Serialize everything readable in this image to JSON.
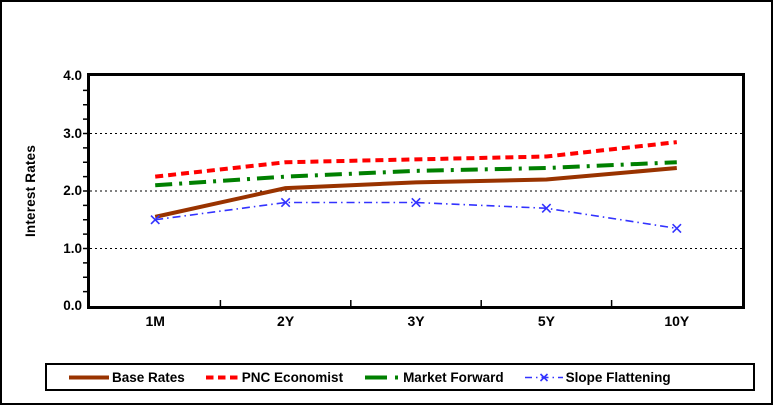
{
  "window": {
    "background": "#FFFFFF",
    "border_color": "#000000"
  },
  "chart_data": {
    "type": "line",
    "title": "",
    "xlabel": "",
    "ylabel": "Interest Rates",
    "categories": [
      "1M",
      "2Y",
      "3Y",
      "5Y",
      "10Y"
    ],
    "ylim": [
      0.0,
      4.0
    ],
    "ytick_values": [
      4.0,
      3.0,
      2.0,
      1.0,
      0.0
    ],
    "ytick_labels": [
      "4.0",
      "3.0",
      "2.0",
      "1.0",
      "0.0"
    ],
    "minor_tick_step": 0.25,
    "grid_values": [
      1.0,
      2.0,
      3.0
    ],
    "grid_style": "dotted",
    "legend_position": "bottom",
    "axis_color": "#000000",
    "series": [
      {
        "name": "Base Rates",
        "color": "#993300",
        "style": "solid",
        "width": 4,
        "marker": "none",
        "values": [
          1.55,
          2.05,
          2.15,
          2.2,
          2.4
        ]
      },
      {
        "name": "PNC Economist",
        "color": "#FF0000",
        "style": "dashed",
        "width": 4,
        "marker": "none",
        "values": [
          2.25,
          2.5,
          2.55,
          2.6,
          2.85
        ]
      },
      {
        "name": "Market Forward",
        "color": "#008000",
        "style": "dash-dot",
        "width": 4,
        "marker": "none",
        "values": [
          2.1,
          2.25,
          2.35,
          2.4,
          2.5
        ]
      },
      {
        "name": "Slope Flattening",
        "color": "#3333FF",
        "style": "dash-dot-thin",
        "width": 1.6,
        "marker": "x",
        "values": [
          1.5,
          1.8,
          1.8,
          1.7,
          1.35
        ]
      }
    ]
  }
}
